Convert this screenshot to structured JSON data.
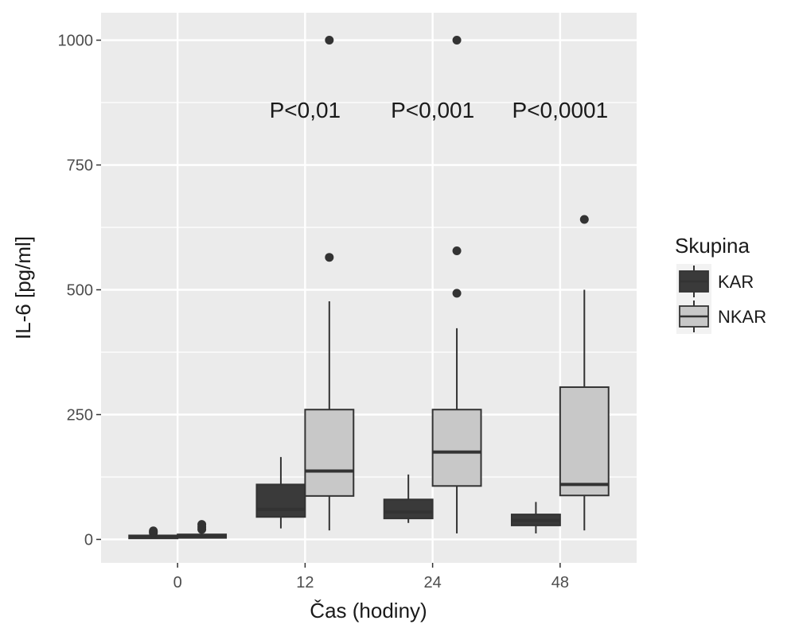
{
  "chart_data": {
    "type": "boxplot",
    "title": "",
    "xlabel": "Čas (hodiny)",
    "ylabel": "IL-6 [pg/ml]",
    "ylim": [
      -47,
      1055
    ],
    "yticks": [
      0,
      250,
      500,
      750,
      1000
    ],
    "categories": [
      "0",
      "12",
      "24",
      "48"
    ],
    "grid": true,
    "legend": {
      "title": "Skupina",
      "position": "right",
      "entries": [
        "KAR",
        "NKAR"
      ]
    },
    "series": [
      {
        "name": "KAR",
        "color": "#3a3a3a",
        "boxes": [
          {
            "category": "0",
            "whisker_low": 2,
            "q1": 2,
            "median": 5,
            "q3": 8,
            "whisker_high": 8,
            "outliers": [
              13,
              15,
              17
            ]
          },
          {
            "category": "12",
            "whisker_low": 22,
            "q1": 45,
            "median": 60,
            "q3": 110,
            "whisker_high": 165,
            "outliers": []
          },
          {
            "category": "24",
            "whisker_low": 33,
            "q1": 42,
            "median": 55,
            "q3": 80,
            "whisker_high": 130,
            "outliers": []
          },
          {
            "category": "48",
            "whisker_low": 12,
            "q1": 28,
            "median": 38,
            "q3": 50,
            "whisker_high": 75,
            "outliers": []
          }
        ]
      },
      {
        "name": "NKAR",
        "color": "#c8c8c8",
        "boxes": [
          {
            "category": "0",
            "whisker_low": 3,
            "q1": 3,
            "median": 6,
            "q3": 10,
            "whisker_high": 12,
            "outliers": [
              20,
              25,
              30
            ]
          },
          {
            "category": "12",
            "whisker_low": 18,
            "q1": 87,
            "median": 137,
            "q3": 260,
            "whisker_high": 477,
            "outliers": [
              565,
              1000
            ]
          },
          {
            "category": "24",
            "whisker_low": 12,
            "q1": 107,
            "median": 175,
            "q3": 260,
            "whisker_high": 423,
            "outliers": [
              493,
              578,
              1000
            ]
          },
          {
            "category": "48",
            "whisker_low": 18,
            "q1": 88,
            "median": 110,
            "q3": 305,
            "whisker_high": 500,
            "outliers": [
              641
            ]
          }
        ]
      }
    ],
    "annotations": [
      {
        "category": "12",
        "y": 845,
        "text": "P<0,01"
      },
      {
        "category": "24",
        "y": 845,
        "text": "P<0,001"
      },
      {
        "category": "48",
        "y": 845,
        "text": "P<0,0001"
      }
    ]
  }
}
